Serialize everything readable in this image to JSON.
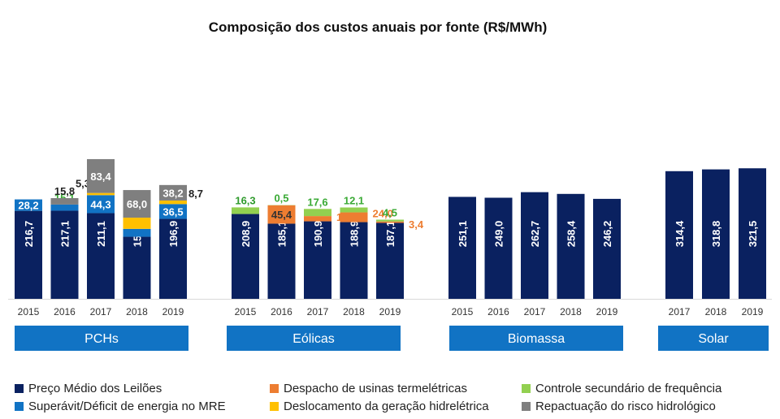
{
  "chart_data": {
    "type": "bar",
    "stacked": true,
    "title": "Composição dos custos anuais por fonte (R$/MWh)",
    "xlabel": "",
    "ylabel": "",
    "ylim": [
      0,
      400
    ],
    "decimal_separator": ",",
    "legend_position": "bottom",
    "series_meta": [
      {
        "key": "preco",
        "name": "Preço Médio dos Leilões",
        "color": "#0a2160"
      },
      {
        "key": "superavit",
        "name": "Superávit/Déficit de energia no MRE",
        "color": "#1173c4"
      },
      {
        "key": "despacho",
        "name": "Despacho de usinas termelétricas",
        "color": "#ed7d31"
      },
      {
        "key": "deslocamento",
        "name": "Deslocamento da geração hidrelétrica",
        "color": "#ffc000"
      },
      {
        "key": "controle",
        "name": "Controle secundário de frequência",
        "color": "#92d050"
      },
      {
        "key": "repactuacao",
        "name": "Repactuação do risco hidrológico",
        "color": "#7f7f7f"
      }
    ],
    "groups": [
      {
        "name": "PCHs",
        "categories": [
          "2015",
          "2016",
          "2017",
          "2018",
          "2019"
        ],
        "series": [
          {
            "key": "preco",
            "values": [
              216.7,
              217.1,
              211.1,
              152.9,
              196.9
            ]
          },
          {
            "key": "superavit",
            "values": [
              28.2,
              15.1,
              44.3,
              19.4,
              36.5
            ]
          },
          {
            "key": "deslocamento",
            "values": [
              null,
              null,
              5.3,
              27.6,
              8.7
            ]
          },
          {
            "key": "repactuacao",
            "values": [
              null,
              15.8,
              83.4,
              68.0,
              38.2
            ]
          }
        ]
      },
      {
        "name": "Eólicas",
        "categories": [
          "2015",
          "2016",
          "2017",
          "2018",
          "2019"
        ],
        "series": [
          {
            "key": "preco",
            "values": [
              208.9,
              185.1,
              190.9,
              188.9,
              187.1
            ]
          },
          {
            "key": "despacho",
            "values": [
              null,
              45.4,
              12.9,
              24.0,
              3.4
            ]
          },
          {
            "key": "controle",
            "values": [
              16.3,
              0.5,
              17.6,
              12.1,
              4.5
            ]
          }
        ]
      },
      {
        "name": "Biomassa",
        "categories": [
          "2015",
          "2016",
          "2017",
          "2018",
          "2019"
        ],
        "series": [
          {
            "key": "preco",
            "values": [
              251.1,
              249.0,
              262.7,
              258.4,
              246.2
            ]
          }
        ]
      },
      {
        "name": "Solar",
        "categories": [
          "2017",
          "2018",
          "2019"
        ],
        "series": [
          {
            "key": "preco",
            "values": [
              314.4,
              318.8,
              321.5
            ]
          }
        ]
      }
    ]
  }
}
